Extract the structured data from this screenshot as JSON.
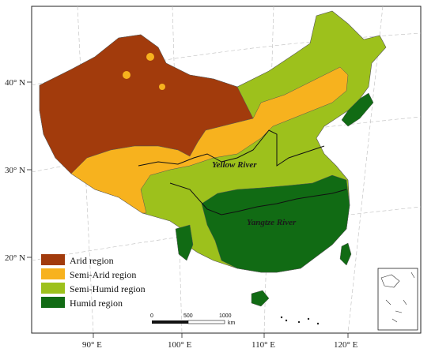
{
  "axes": {
    "longitudes": [
      "90° E",
      "100° E",
      "110° E",
      "120° E"
    ],
    "latitudes": [
      "40° N",
      "30° N",
      "20° N"
    ]
  },
  "rivers": {
    "yellow": "Yellow River",
    "yangtze": "Yangtze River"
  },
  "legend": [
    {
      "label": "Arid region",
      "color": "#a23b0c"
    },
    {
      "label": "Semi-Arid region",
      "color": "#f7b21e"
    },
    {
      "label": "Semi-Humid region",
      "color": "#9dc11c"
    },
    {
      "label": "Humid region",
      "color": "#116b14"
    }
  ],
  "scale_bar": {
    "ticks": [
      "0",
      "500",
      "1000"
    ],
    "unit": "km"
  }
}
